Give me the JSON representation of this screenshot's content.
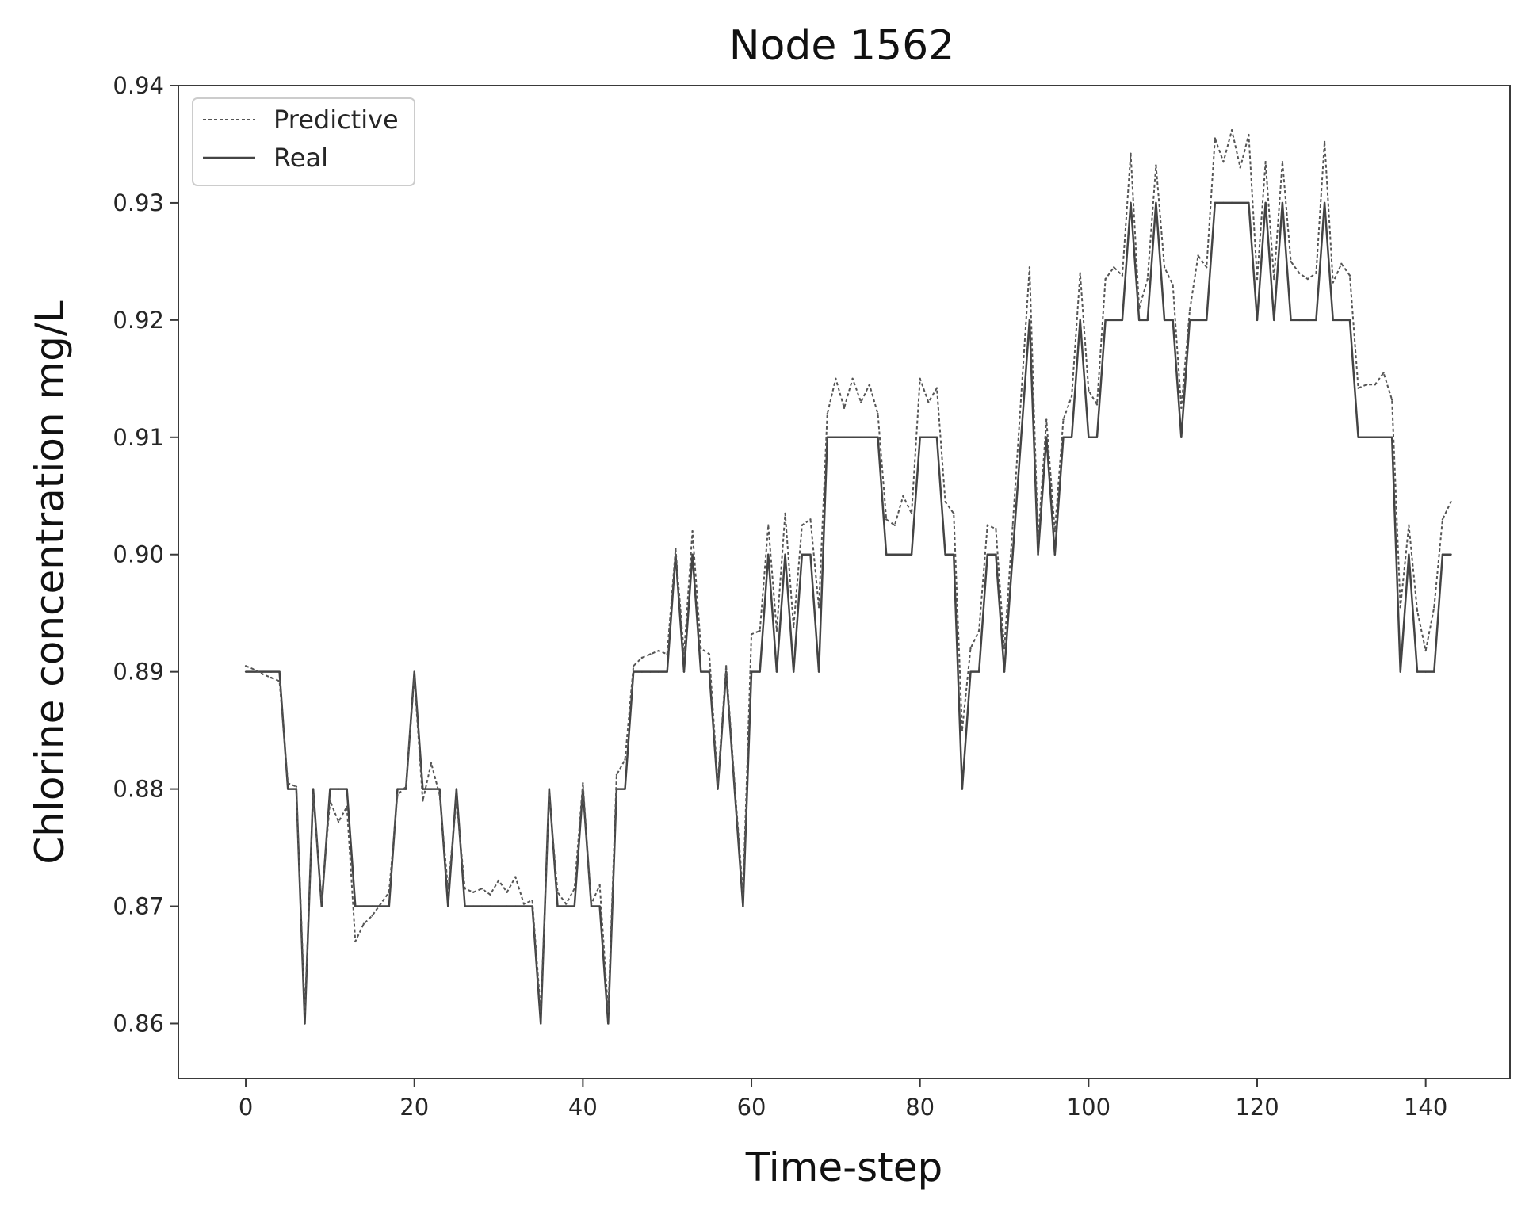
{
  "chart_data": {
    "type": "line",
    "title": "Node 1562",
    "xlabel": "Time-step",
    "ylabel": "Chlorine concentration mg/L",
    "xlim": [
      -8,
      150
    ],
    "ylim": [
      0.8553,
      0.94
    ],
    "xticks": [
      0,
      20,
      40,
      60,
      80,
      100,
      120,
      140
    ],
    "yticks": [
      0.86,
      0.87,
      0.88,
      0.89,
      0.9,
      0.91,
      0.92,
      0.93,
      0.94
    ],
    "ytick_labels": [
      "0.86",
      "0.87",
      "0.88",
      "0.89",
      "0.90",
      "0.91",
      "0.92",
      "0.93",
      "0.94"
    ],
    "grid": false,
    "legend_position": "top-left",
    "series": [
      {
        "name": "Predictive",
        "style": "dashed",
        "color": "#555555",
        "x": [
          0,
          1,
          2,
          3,
          4,
          5,
          6,
          7,
          8,
          9,
          10,
          11,
          12,
          13,
          14,
          15,
          16,
          17,
          18,
          19,
          20,
          21,
          22,
          23,
          24,
          25,
          26,
          27,
          28,
          29,
          30,
          31,
          32,
          33,
          34,
          35,
          36,
          37,
          38,
          39,
          40,
          41,
          42,
          43,
          44,
          45,
          46,
          47,
          48,
          49,
          50,
          51,
          52,
          53,
          54,
          55,
          56,
          57,
          58,
          59,
          60,
          61,
          62,
          63,
          64,
          65,
          66,
          67,
          68,
          69,
          70,
          71,
          72,
          73,
          74,
          75,
          76,
          77,
          78,
          79,
          80,
          81,
          82,
          83,
          84,
          85,
          86,
          87,
          88,
          89,
          90,
          91,
          92,
          93,
          94,
          95,
          96,
          97,
          98,
          99,
          100,
          101,
          102,
          103,
          104,
          105,
          106,
          107,
          108,
          109,
          110,
          111,
          112,
          113,
          114,
          115,
          116,
          117,
          118,
          119,
          120,
          121,
          122,
          123,
          124,
          125,
          126,
          127,
          128,
          129,
          130,
          131,
          132,
          133,
          134,
          135,
          136,
          137,
          138,
          139,
          140,
          141,
          142,
          143
        ],
        "y": [
          0.8905,
          0.8902,
          0.8898,
          0.8895,
          0.8892,
          0.8805,
          0.8802,
          0.861,
          0.8795,
          0.8705,
          0.879,
          0.8772,
          0.8785,
          0.867,
          0.8685,
          0.8692,
          0.8702,
          0.8712,
          0.8795,
          0.8802,
          0.8895,
          0.879,
          0.8822,
          0.8795,
          0.8715,
          0.879,
          0.8715,
          0.8712,
          0.8715,
          0.871,
          0.8722,
          0.8712,
          0.8725,
          0.8702,
          0.8705,
          0.861,
          0.8795,
          0.8712,
          0.8702,
          0.8715,
          0.8805,
          0.8702,
          0.8718,
          0.861,
          0.8812,
          0.8825,
          0.8905,
          0.8912,
          0.8915,
          0.8918,
          0.8915,
          0.9005,
          0.8915,
          0.902,
          0.892,
          0.8915,
          0.8805,
          0.8905,
          0.8805,
          0.871,
          0.8932,
          0.8935,
          0.9025,
          0.8935,
          0.9035,
          0.8938,
          0.9025,
          0.903,
          0.8955,
          0.912,
          0.915,
          0.9125,
          0.915,
          0.913,
          0.9145,
          0.912,
          0.903,
          0.9025,
          0.905,
          0.9035,
          0.915,
          0.913,
          0.9142,
          0.9045,
          0.9035,
          0.885,
          0.892,
          0.8935,
          0.9025,
          0.9022,
          0.892,
          0.9025,
          0.9135,
          0.9245,
          0.9012,
          0.9115,
          0.902,
          0.9115,
          0.9135,
          0.924,
          0.914,
          0.9128,
          0.9235,
          0.9245,
          0.9238,
          0.9342,
          0.921,
          0.9235,
          0.9332,
          0.9245,
          0.923,
          0.9125,
          0.9208,
          0.9255,
          0.9245,
          0.9355,
          0.9335,
          0.9362,
          0.933,
          0.9358,
          0.9235,
          0.9335,
          0.9235,
          0.9335,
          0.925,
          0.924,
          0.9235,
          0.924,
          0.9352,
          0.9232,
          0.9248,
          0.9238,
          0.9142,
          0.9145,
          0.9145,
          0.9155,
          0.9132,
          0.8955,
          0.9025,
          0.8952,
          0.8918,
          0.8955,
          0.903,
          0.9045
        ]
      },
      {
        "name": "Real",
        "style": "solid",
        "color": "#444444",
        "x": [
          0,
          1,
          2,
          3,
          4,
          5,
          6,
          7,
          8,
          9,
          10,
          11,
          12,
          13,
          14,
          15,
          16,
          17,
          18,
          19,
          20,
          21,
          22,
          23,
          24,
          25,
          26,
          27,
          28,
          29,
          30,
          31,
          32,
          33,
          34,
          35,
          36,
          37,
          38,
          39,
          40,
          41,
          42,
          43,
          44,
          45,
          46,
          47,
          48,
          49,
          50,
          51,
          52,
          53,
          54,
          55,
          56,
          57,
          58,
          59,
          60,
          61,
          62,
          63,
          64,
          65,
          66,
          67,
          68,
          69,
          70,
          71,
          72,
          73,
          74,
          75,
          76,
          77,
          78,
          79,
          80,
          81,
          82,
          83,
          84,
          85,
          86,
          87,
          88,
          89,
          90,
          91,
          92,
          93,
          94,
          95,
          96,
          97,
          98,
          99,
          100,
          101,
          102,
          103,
          104,
          105,
          106,
          107,
          108,
          109,
          110,
          111,
          112,
          113,
          114,
          115,
          116,
          117,
          118,
          119,
          120,
          121,
          122,
          123,
          124,
          125,
          126,
          127,
          128,
          129,
          130,
          131,
          132,
          133,
          134,
          135,
          136,
          137,
          138,
          139,
          140,
          141,
          142,
          143
        ],
        "y": [
          0.89,
          0.89,
          0.89,
          0.89,
          0.89,
          0.88,
          0.88,
          0.86,
          0.88,
          0.87,
          0.88,
          0.88,
          0.88,
          0.87,
          0.87,
          0.87,
          0.87,
          0.87,
          0.88,
          0.88,
          0.89,
          0.88,
          0.88,
          0.88,
          0.87,
          0.88,
          0.87,
          0.87,
          0.87,
          0.87,
          0.87,
          0.87,
          0.87,
          0.87,
          0.87,
          0.86,
          0.88,
          0.87,
          0.87,
          0.87,
          0.88,
          0.87,
          0.87,
          0.86,
          0.88,
          0.88,
          0.89,
          0.89,
          0.89,
          0.89,
          0.89,
          0.9,
          0.89,
          0.9,
          0.89,
          0.89,
          0.88,
          0.89,
          0.88,
          0.87,
          0.89,
          0.89,
          0.9,
          0.89,
          0.9,
          0.89,
          0.9,
          0.9,
          0.89,
          0.91,
          0.91,
          0.91,
          0.91,
          0.91,
          0.91,
          0.91,
          0.9,
          0.9,
          0.9,
          0.9,
          0.91,
          0.91,
          0.91,
          0.9,
          0.9,
          0.88,
          0.89,
          0.89,
          0.9,
          0.9,
          0.89,
          0.9,
          0.91,
          0.92,
          0.9,
          0.91,
          0.9,
          0.91,
          0.91,
          0.92,
          0.91,
          0.91,
          0.92,
          0.92,
          0.92,
          0.93,
          0.92,
          0.92,
          0.93,
          0.92,
          0.92,
          0.91,
          0.92,
          0.92,
          0.92,
          0.93,
          0.93,
          0.93,
          0.93,
          0.93,
          0.92,
          0.93,
          0.92,
          0.93,
          0.92,
          0.92,
          0.92,
          0.92,
          0.93,
          0.92,
          0.92,
          0.92,
          0.91,
          0.91,
          0.91,
          0.91,
          0.91,
          0.89,
          0.9,
          0.89,
          0.89,
          0.89,
          0.9,
          0.9
        ]
      }
    ]
  }
}
